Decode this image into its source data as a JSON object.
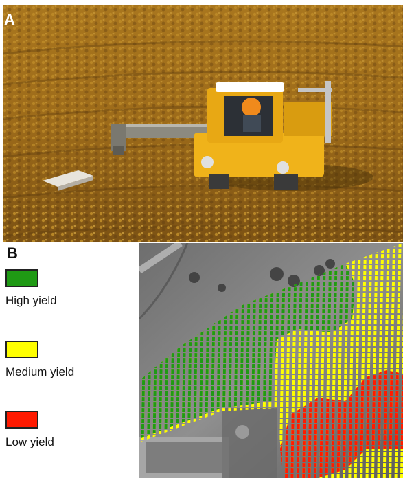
{
  "panel_a": {
    "letter": "A",
    "photo": "aerial-vineyard-harvester-photo"
  },
  "panel_b": {
    "letter": "B",
    "map": "vineyard-yield-map",
    "legend": [
      {
        "label": "High yield",
        "color": "#1f9a14"
      },
      {
        "label": "Medium yield",
        "color": "#ffff00"
      },
      {
        "label": "Low yield",
        "color": "#ff1a00"
      }
    ]
  }
}
